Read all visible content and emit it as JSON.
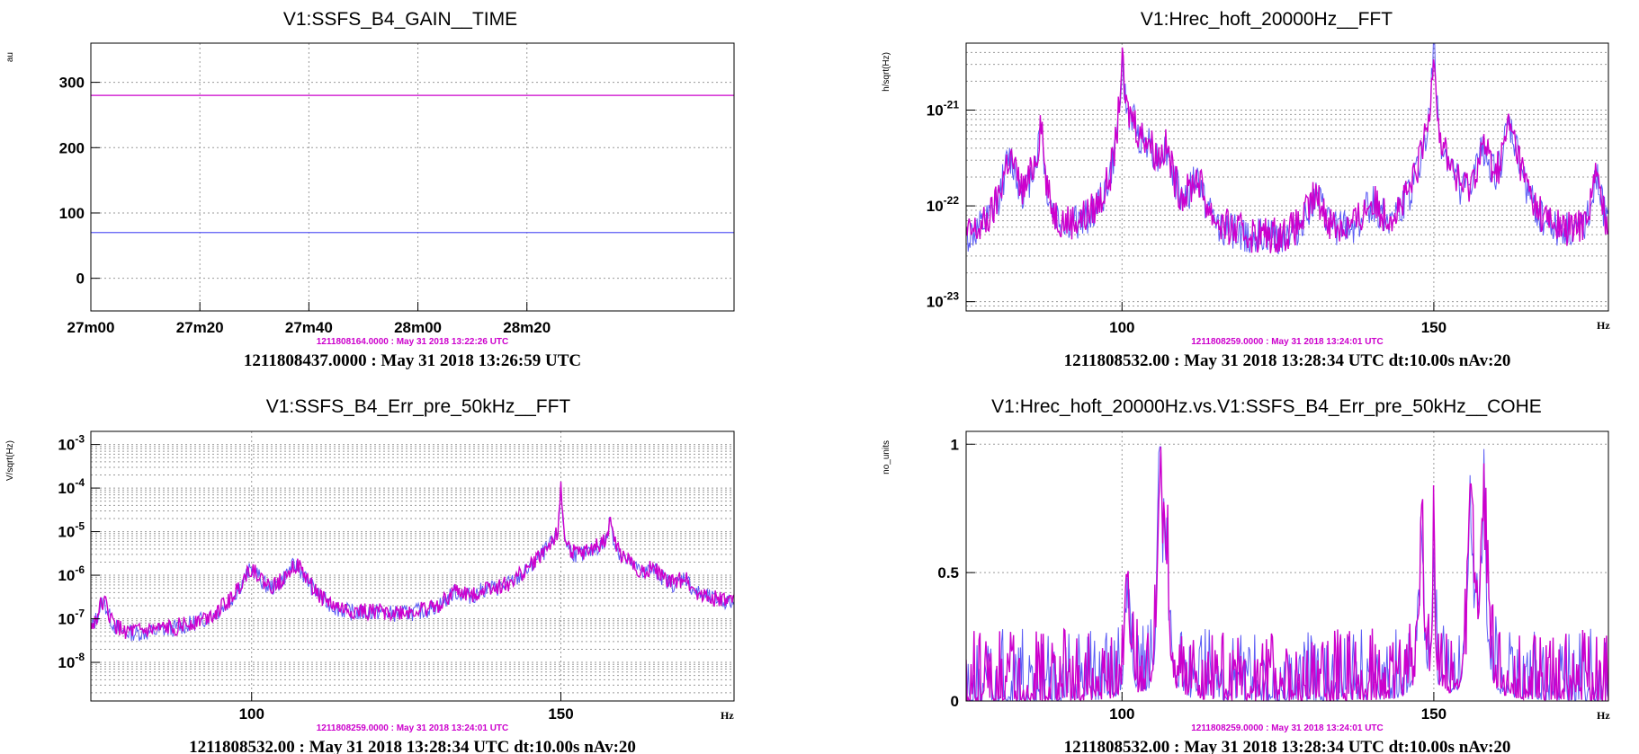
{
  "colors": {
    "reference": "#5b5bf5",
    "current": "#cc00cc",
    "grid": "#9a9a9a"
  },
  "chart_data": [
    {
      "type": "line",
      "title": "V1:SSFS_B4_GAIN__TIME",
      "ylabel": "au",
      "xlabel": "",
      "x_ticks": [
        "27m00",
        "27m20",
        "27m40",
        "28m00",
        "28m20"
      ],
      "x_range_seconds": [
        1620,
        1738
      ],
      "x_tick_values": [
        1620,
        1640,
        1660,
        1680,
        1700
      ],
      "ylim": [
        -50,
        360
      ],
      "y_ticks": [
        0,
        100,
        200,
        300
      ],
      "log_y": false,
      "grid": true,
      "series": [
        {
          "role": "current",
          "x": [
            1620,
            1738
          ],
          "values": [
            280,
            280
          ]
        },
        {
          "role": "reference",
          "x": [
            1620,
            1738
          ],
          "values": [
            70,
            70
          ]
        }
      ],
      "ref_timestamp": "1211808164.0000 : May 31 2018 13:22:26 UTC",
      "main_timestamp": "1211808437.0000 : May 31 2018 13:26:59 UTC"
    },
    {
      "type": "line",
      "title": "V1:Hrec_hoft_20000Hz__FFT",
      "ylabel": "h/sqrt(Hz)",
      "xlabel": "Hz",
      "xlim": [
        75,
        178
      ],
      "x_ticks": [
        100,
        150
      ],
      "ylim": [
        8e-24,
        5e-21
      ],
      "y_ticks": [
        {
          "value": 1e-23,
          "base": "10",
          "exp": "-23"
        },
        {
          "value": 1e-22,
          "base": "10",
          "exp": "-22"
        },
        {
          "value": 1e-21,
          "base": "10",
          "exp": "-21"
        }
      ],
      "log_y": true,
      "grid": true,
      "baseline": 3.5e-23,
      "peaks": [
        [
          82,
          2.5e-22,
          1.2
        ],
        [
          86,
          1.6e-22,
          1.0
        ],
        [
          87,
          7e-22,
          0.3
        ],
        [
          100,
          2.5e-21,
          0.35
        ],
        [
          101.5,
          6e-22,
          1.2
        ],
        [
          104,
          3e-22,
          1.5
        ],
        [
          107,
          2.5e-22,
          1.0
        ],
        [
          112,
          1.2e-22,
          1.2
        ],
        [
          131,
          7e-23,
          1.5
        ],
        [
          140,
          5e-23,
          1.5
        ],
        [
          150,
          4.5e-21,
          0.25
        ],
        [
          149,
          3e-22,
          1.5
        ],
        [
          152,
          1.5e-22,
          1.5
        ],
        [
          158,
          3e-22,
          1.2
        ],
        [
          162,
          4.5e-22,
          0.8
        ],
        [
          163,
          2e-22,
          1.5
        ],
        [
          176,
          1.5e-22,
          0.8
        ]
      ],
      "ref_timestamp": "1211808259.0000 : May 31 2018 13:24:01 UTC",
      "main_timestamp": "1211808532.00 : May 31 2018 13:28:34 UTC dt:10.00s nAv:20"
    },
    {
      "type": "line",
      "title": "V1:SSFS_B4_Err_pre_50kHz__FFT",
      "ylabel": "V/sqrt(Hz)",
      "xlabel": "Hz",
      "xlim": [
        74,
        178
      ],
      "x_ticks": [
        100,
        150
      ],
      "ylim": [
        1.3e-09,
        0.002
      ],
      "y_ticks": [
        {
          "value": 1e-08,
          "base": "10",
          "exp": "-8"
        },
        {
          "value": 1e-07,
          "base": "10",
          "exp": "-7"
        },
        {
          "value": 1e-06,
          "base": "10",
          "exp": "-6"
        },
        {
          "value": 1e-05,
          "base": "10",
          "exp": "-5"
        },
        {
          "value": 0.0001,
          "base": "10",
          "exp": "-4"
        },
        {
          "value": 0.001,
          "base": "10",
          "exp": "-3"
        }
      ],
      "log_y": true,
      "grid": true,
      "baseline": 1.5e-08,
      "peaks": [
        [
          76,
          2e-07,
          0.8
        ],
        [
          100,
          1.2e-06,
          1.5
        ],
        [
          107,
          1.5e-06,
          1.8
        ],
        [
          120,
          3e-08,
          3.0
        ],
        [
          133,
          2e-07,
          1.5
        ],
        [
          138,
          1.5e-07,
          1.5
        ],
        [
          149,
          4e-06,
          2.5
        ],
        [
          150,
          9e-05,
          0.15
        ],
        [
          157,
          4e-06,
          3.0
        ],
        [
          158,
          1.5e-05,
          0.3
        ],
        [
          165,
          6e-07,
          1.5
        ],
        [
          170,
          5e-07,
          0.8
        ]
      ],
      "rise": {
        "from": 140,
        "to": 178,
        "level": 1e-07
      },
      "ref_timestamp": "1211808259.0000 : May 31 2018 13:24:01 UTC",
      "main_timestamp": "1211808532.00 : May 31 2018 13:28:34 UTC dt:10.00s nAv:20"
    },
    {
      "type": "line",
      "title": "V1:Hrec_hoft_20000Hz.vs.V1:SSFS_B4_Err_pre_50kHz__COHE",
      "ylabel": "no_units",
      "xlabel": "Hz",
      "xlim": [
        75,
        178
      ],
      "x_ticks": [
        100,
        150
      ],
      "ylim": [
        0,
        1.05
      ],
      "y_ticks": [
        {
          "value": 0,
          "label": "0"
        },
        {
          "value": 0.5,
          "label": "0.5"
        },
        {
          "value": 1,
          "label": "1"
        }
      ],
      "log_y": false,
      "grid": true,
      "peaks": [
        [
          101,
          0.55,
          0.4
        ],
        [
          106,
          0.95,
          0.35
        ],
        [
          107,
          0.8,
          0.5
        ],
        [
          148,
          0.75,
          0.5
        ],
        [
          150,
          0.82,
          0.2
        ],
        [
          156,
          0.95,
          0.5
        ],
        [
          158,
          0.98,
          0.5
        ]
      ],
      "ref_timestamp": "1211808259.0000 : May 31 2018 13:24:01 UTC",
      "main_timestamp": "1211808532.00 : May 31 2018 13:28:34 UTC dt:10.00s nAv:20"
    }
  ]
}
